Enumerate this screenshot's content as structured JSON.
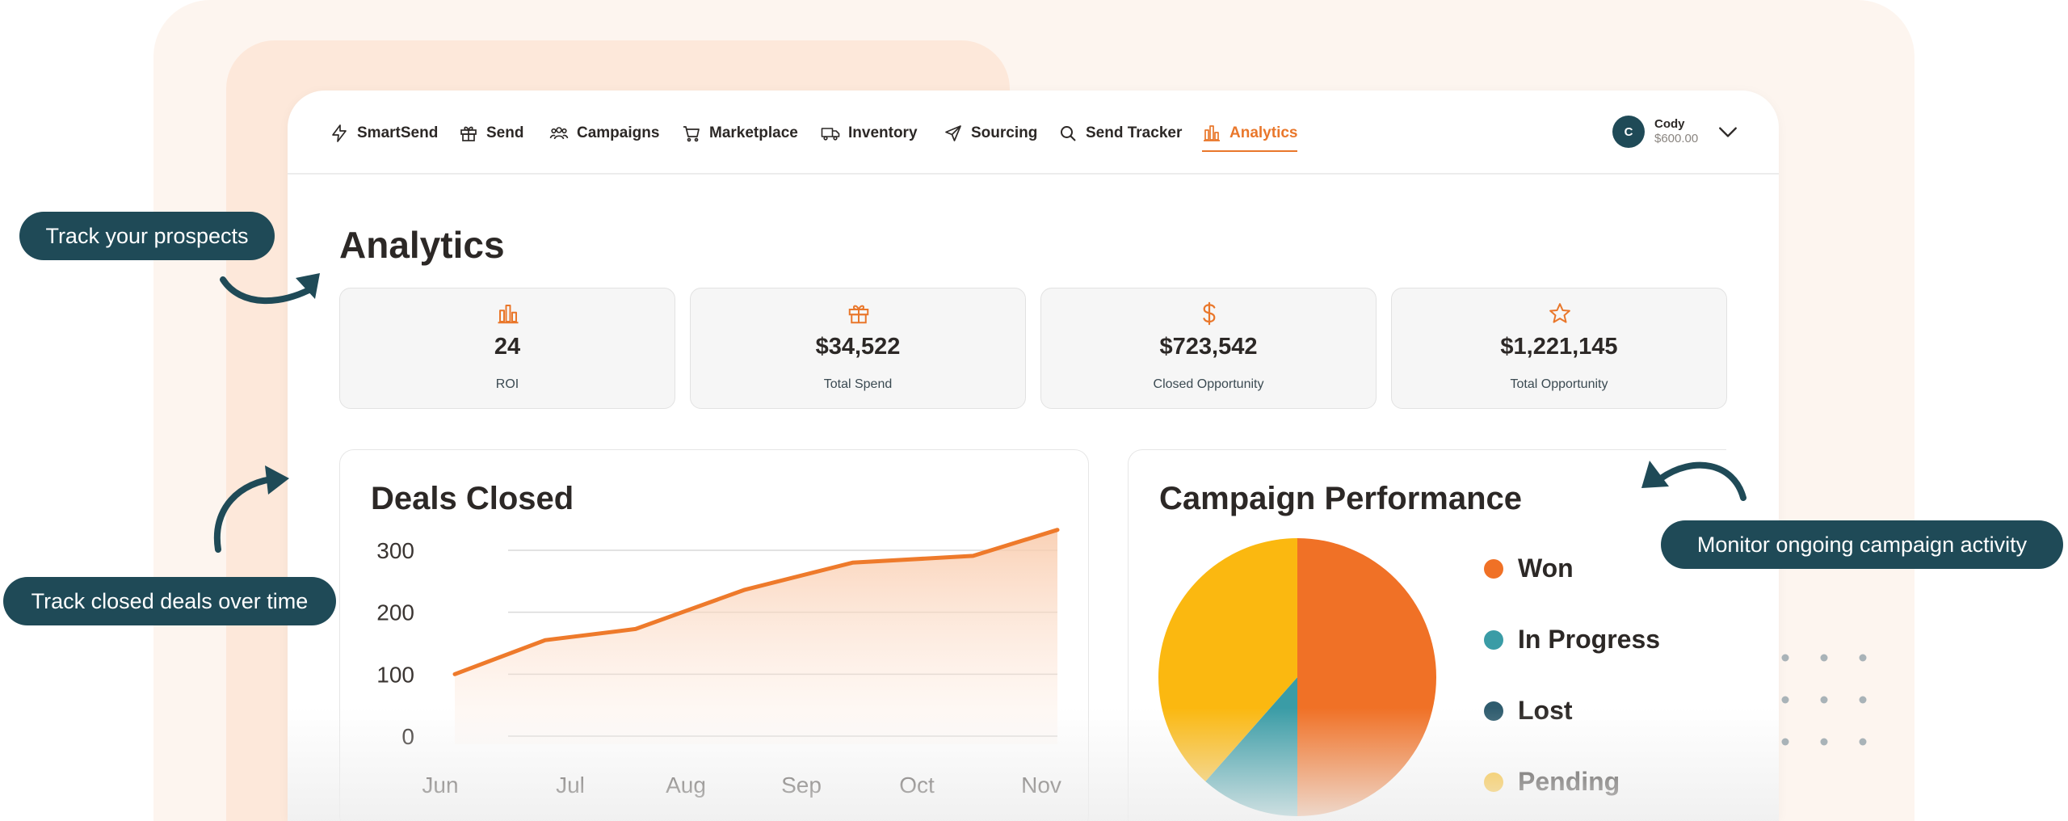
{
  "nav": {
    "items": [
      {
        "label": "SmartSend",
        "icon": "lightning-icon"
      },
      {
        "label": "Send",
        "icon": "gift-icon"
      },
      {
        "label": "Campaigns",
        "icon": "users-icon"
      },
      {
        "label": "Marketplace",
        "icon": "cart-icon"
      },
      {
        "label": "Inventory",
        "icon": "truck-icon"
      },
      {
        "label": "Sourcing",
        "icon": "send-icon"
      },
      {
        "label": "Send Tracker",
        "icon": "search-icon"
      },
      {
        "label": "Analytics",
        "icon": "bar-chart-icon",
        "active": true
      }
    ],
    "user": {
      "initial": "C",
      "name": "Cody",
      "balance": "$600.00"
    }
  },
  "page": {
    "title": "Analytics"
  },
  "stats": [
    {
      "value": "24",
      "label": "ROI",
      "icon": "bar-chart-icon"
    },
    {
      "value": "$34,522",
      "label": "Total Spend",
      "icon": "gift-icon"
    },
    {
      "value": "$723,542",
      "label": "Closed Opportunity",
      "icon": "dollar-icon"
    },
    {
      "value": "$1,221,145",
      "label": "Total Opportunity",
      "icon": "star-icon"
    }
  ],
  "deals": {
    "title": "Deals Closed"
  },
  "campaign": {
    "title": "Campaign Performance"
  },
  "chart_data": [
    {
      "type": "area",
      "title": "Deals Closed",
      "x": [
        "Jun",
        "Jul",
        "Aug",
        "Sep",
        "Oct",
        "Nov"
      ],
      "y_ticks": [
        0,
        100,
        200,
        300
      ],
      "ylim": [
        0,
        330
      ],
      "series": [
        {
          "x": [
            0,
            0.75,
            1.5,
            2.4,
            3.3,
            4.3,
            5.0
          ],
          "y": [
            100,
            155,
            173,
            236,
            280,
            291,
            333
          ]
        }
      ],
      "color": "#ee7a2b",
      "grid": true
    },
    {
      "type": "pie",
      "title": "Campaign Performance",
      "labels": [
        "Won",
        "In Progress",
        "Lost",
        "Pending"
      ],
      "values": [
        50,
        11.5,
        0,
        38.5
      ],
      "colors": [
        "#f07126",
        "#3a9ca6",
        "#2f5c6e",
        "#fbb810"
      ],
      "legend": "right"
    }
  ],
  "callouts": {
    "prospects": "Track your prospects",
    "deals": "Track closed deals over time",
    "campaigns": "Monitor ongoing campaign activity"
  },
  "colors": {
    "accent": "#e9772b",
    "dark": "#1f4a57"
  }
}
